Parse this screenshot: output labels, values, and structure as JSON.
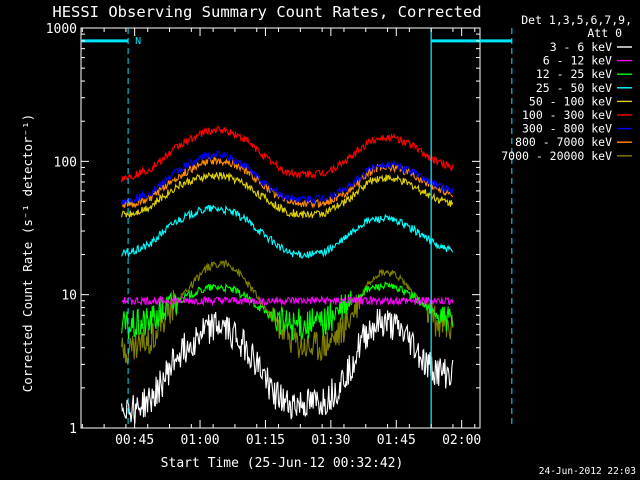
{
  "chart_data": {
    "type": "line",
    "title": "HESSI Observing Summary Count Rates, Corrected",
    "xlabel": "Start Time (25-Jun-12 00:32:42)",
    "ylabel": "Corrected Count Rate (s⁻¹ detector⁻¹)",
    "yscale": "log",
    "ylim": [
      1,
      1000
    ],
    "xlim_minutes": [
      0.0,
      91.5
    ],
    "x_ticks": [
      "00:45",
      "01:00",
      "01:15",
      "01:30",
      "01:45",
      "02:00"
    ],
    "y_ticks": [
      "1",
      "10",
      "100",
      "1000"
    ],
    "x_units": "minutes after 00:32:42",
    "grid": false,
    "legend_position": "top-right",
    "legend_header": [
      "Det 1,3,5,6,7,9,",
      "Att 0"
    ],
    "footer_date": "24-Jun-2012 22:03",
    "data_gaps": [
      {
        "label": "N",
        "start": "00:43:30",
        "line_top": 800
      },
      {
        "label": "",
        "start": "01:53:00",
        "line_top": 800
      }
    ],
    "series": [
      {
        "name": "3 - 6 keV",
        "color": "#ffffff",
        "x": [
          9.3,
          12,
          16,
          19,
          22,
          26,
          29,
          32,
          35,
          38,
          41,
          44,
          47,
          50,
          53,
          56,
          59,
          62,
          64,
          66,
          68,
          70,
          73,
          76,
          79,
          82,
          85.3
        ],
        "values": [
          1.5,
          1.4,
          1.6,
          2.3,
          3.5,
          4.6,
          5.6,
          5.8,
          5.1,
          4.0,
          2.8,
          1.9,
          1.5,
          1.5,
          1.5,
          1.6,
          2.0,
          3.0,
          4.2,
          5.4,
          6.0,
          6.1,
          5.4,
          4.3,
          3.0,
          2.6,
          2.5
        ]
      },
      {
        "name": "6 - 12 keV",
        "color": "#ff00ff",
        "x": [
          9.3,
          20,
          30,
          40,
          50,
          60,
          70,
          80,
          85.3
        ],
        "values": [
          9.0,
          9.0,
          9.0,
          9.0,
          9.0,
          9.0,
          9.0,
          9.0,
          9.0
        ]
      },
      {
        "name": "12 - 25 keV",
        "color": "#00ff00",
        "x": [
          9.3,
          12,
          16,
          19,
          22,
          26,
          29,
          32,
          35,
          38,
          41,
          44,
          47,
          50,
          53,
          56,
          59,
          62,
          64,
          66,
          68,
          70,
          73,
          76,
          79,
          82,
          85.3
        ],
        "values": [
          5.8,
          5.8,
          6.3,
          7.6,
          9.0,
          10.3,
          11.2,
          11.4,
          10.8,
          9.5,
          8.0,
          6.8,
          6.0,
          6.0,
          6.0,
          6.3,
          7.3,
          8.7,
          10.0,
          11.0,
          11.5,
          11.6,
          11.0,
          9.8,
          8.2,
          6.8,
          6.0
        ]
      },
      {
        "name": "25 - 50 keV",
        "color": "#00ffff",
        "x": [
          9.3,
          12,
          16,
          19,
          22,
          26,
          29,
          32,
          35,
          38,
          41,
          44,
          47,
          50,
          53,
          56,
          59,
          62,
          64,
          66,
          68,
          70,
          73,
          76,
          79,
          82,
          85.3
        ],
        "values": [
          20,
          21,
          24,
          30,
          36,
          41,
          44,
          44,
          41,
          36,
          30,
          25,
          21,
          20,
          20,
          21,
          24,
          29,
          33,
          36,
          37,
          37,
          35,
          31,
          27,
          23,
          21
        ]
      },
      {
        "name": "50 - 100 keV",
        "color": "#e0d000",
        "x": [
          9.3,
          12,
          16,
          19,
          22,
          26,
          29,
          32,
          35,
          38,
          41,
          44,
          47,
          50,
          53,
          56,
          59,
          62,
          64,
          66,
          68,
          70,
          73,
          76,
          79,
          82,
          85.3
        ],
        "values": [
          40,
          41,
          46,
          55,
          65,
          73,
          77,
          78,
          74,
          66,
          56,
          48,
          42,
          40,
          40,
          41,
          46,
          54,
          62,
          70,
          75,
          75,
          72,
          66,
          58,
          52,
          48
        ]
      },
      {
        "name": "100 - 300 keV",
        "color": "#ff0000",
        "x": [
          9.3,
          12,
          16,
          19,
          22,
          26,
          29,
          32,
          35,
          38,
          41,
          44,
          47,
          50,
          53,
          56,
          59,
          62,
          64,
          66,
          68,
          70,
          73,
          76,
          79,
          82,
          85.3
        ],
        "values": [
          75,
          78,
          88,
          105,
          128,
          152,
          168,
          172,
          162,
          142,
          118,
          97,
          83,
          80,
          80,
          82,
          92,
          108,
          124,
          140,
          150,
          152,
          146,
          132,
          112,
          98,
          90
        ]
      },
      {
        "name": "300 - 800 keV",
        "color": "#0000ff",
        "x": [
          9.3,
          12,
          16,
          19,
          22,
          26,
          29,
          32,
          35,
          38,
          41,
          44,
          47,
          50,
          53,
          56,
          59,
          62,
          64,
          66,
          68,
          70,
          73,
          76,
          79,
          82,
          85.3
        ],
        "values": [
          50,
          52,
          58,
          70,
          84,
          100,
          110,
          112,
          104,
          90,
          74,
          61,
          54,
          52,
          52,
          53,
          58,
          66,
          76,
          87,
          94,
          95,
          92,
          84,
          74,
          65,
          60
        ]
      },
      {
        "name": "800 - 7000 keV",
        "color": "#ff8c00",
        "x": [
          9.3,
          12,
          16,
          19,
          22,
          26,
          29,
          32,
          35,
          38,
          41,
          44,
          47,
          50,
          53,
          56,
          59,
          62,
          64,
          66,
          68,
          70,
          73,
          76,
          79,
          82,
          85.3
        ],
        "values": [
          47,
          48,
          53,
          63,
          76,
          90,
          100,
          102,
          96,
          84,
          70,
          58,
          51,
          48,
          48,
          49,
          54,
          62,
          72,
          82,
          90,
          91,
          88,
          80,
          70,
          62,
          57
        ]
      },
      {
        "name": "7000 - 20000 keV",
        "color": "#808000",
        "x": [
          9.3,
          12,
          16,
          19,
          22,
          26,
          29,
          32,
          35,
          38,
          41,
          44,
          47,
          50,
          53,
          56,
          59,
          62,
          64,
          66,
          68,
          70,
          73,
          76,
          79,
          82,
          85.3
        ],
        "values": [
          3.8,
          4.0,
          4.8,
          6.5,
          9.0,
          12.5,
          16.0,
          17.5,
          16.0,
          12.5,
          9.0,
          6.5,
          5.0,
          4.2,
          4.0,
          4.2,
          5.0,
          7.0,
          9.5,
          12.5,
          14.5,
          15.0,
          13.5,
          10.5,
          7.8,
          6.0,
          5.5
        ]
      }
    ]
  }
}
